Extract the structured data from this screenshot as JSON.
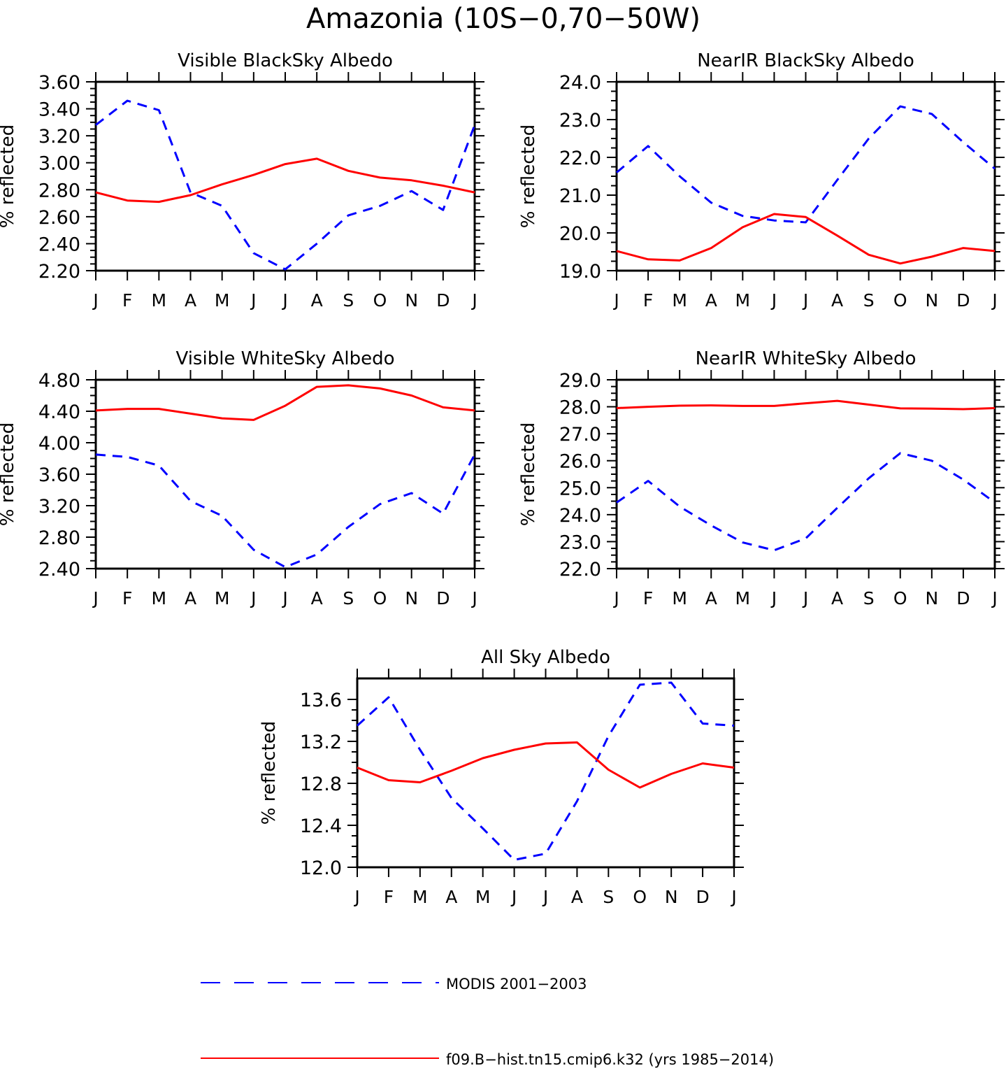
{
  "title": "Amazonia (10S−0,70−50W)",
  "legend": [
    {
      "label": "MODIS 2001−2003",
      "color": "#0000ff",
      "dash": true
    },
    {
      "label": "f09.B−hist.tn15.cmip6.k32 (yrs 1985−2014)",
      "color": "#ff0000",
      "dash": false
    }
  ],
  "chart_data": [
    {
      "type": "line",
      "title": "Visible BlackSky Albedo",
      "ylabel": "% reflected",
      "categories": [
        "J",
        "F",
        "M",
        "A",
        "M",
        "J",
        "J",
        "A",
        "S",
        "O",
        "N",
        "D",
        "J"
      ],
      "ylim": [
        2.2,
        3.6
      ],
      "yticks": [
        "2.20",
        "2.40",
        "2.60",
        "2.80",
        "3.00",
        "3.20",
        "3.40",
        "3.60"
      ],
      "series": [
        {
          "name": "MODIS 2001−2003",
          "color": "#0000ff",
          "dash": true,
          "values": [
            3.28,
            3.46,
            3.39,
            2.78,
            2.68,
            2.33,
            2.21,
            2.4,
            2.61,
            2.68,
            2.79,
            2.65,
            3.28
          ]
        },
        {
          "name": "f09.B−hist.tn15.cmip6.k32 (yrs 1985−2014)",
          "color": "#ff0000",
          "dash": false,
          "values": [
            2.78,
            2.72,
            2.71,
            2.76,
            2.84,
            2.91,
            2.99,
            3.03,
            2.94,
            2.89,
            2.87,
            2.83,
            2.78
          ]
        }
      ]
    },
    {
      "type": "line",
      "title": "NearIR BlackSky Albedo",
      "ylabel": "% reflected",
      "categories": [
        "J",
        "F",
        "M",
        "A",
        "M",
        "J",
        "J",
        "A",
        "S",
        "O",
        "N",
        "D",
        "J"
      ],
      "ylim": [
        19.0,
        24.0
      ],
      "yticks": [
        "19.0",
        "20.0",
        "21.0",
        "22.0",
        "23.0",
        "24.0"
      ],
      "series": [
        {
          "name": "MODIS 2001−2003",
          "color": "#0000ff",
          "dash": true,
          "values": [
            21.6,
            22.3,
            21.5,
            20.8,
            20.45,
            20.33,
            20.28,
            21.4,
            22.5,
            23.35,
            23.15,
            22.4,
            21.7
          ]
        },
        {
          "name": "f09.B−hist.tn15.cmip6.k32 (yrs 1985−2014)",
          "color": "#ff0000",
          "dash": false,
          "values": [
            19.52,
            19.3,
            19.27,
            19.6,
            20.15,
            20.5,
            20.42,
            19.93,
            19.42,
            19.19,
            19.37,
            19.6,
            19.52
          ]
        }
      ]
    },
    {
      "type": "line",
      "title": "Visible WhiteSky Albedo",
      "ylabel": "% reflected",
      "categories": [
        "J",
        "F",
        "M",
        "A",
        "M",
        "J",
        "J",
        "A",
        "S",
        "O",
        "N",
        "D",
        "J"
      ],
      "ylim": [
        2.4,
        4.8
      ],
      "yticks": [
        "2.40",
        "2.80",
        "3.20",
        "3.60",
        "4.00",
        "4.40",
        "4.80"
      ],
      "series": [
        {
          "name": "MODIS 2001−2003",
          "color": "#0000ff",
          "dash": true,
          "values": [
            3.85,
            3.82,
            3.71,
            3.26,
            3.07,
            2.64,
            2.42,
            2.58,
            2.93,
            3.22,
            3.36,
            3.1,
            3.85
          ]
        },
        {
          "name": "f09.B−hist.tn15.cmip6.k32 (yrs 1985−2014)",
          "color": "#ff0000",
          "dash": false,
          "values": [
            4.41,
            4.43,
            4.43,
            4.37,
            4.31,
            4.29,
            4.47,
            4.71,
            4.73,
            4.69,
            4.6,
            4.45,
            4.41
          ]
        }
      ]
    },
    {
      "type": "line",
      "title": "NearIR WhiteSky Albedo",
      "ylabel": "% reflected",
      "categories": [
        "J",
        "F",
        "M",
        "A",
        "M",
        "J",
        "J",
        "A",
        "S",
        "O",
        "N",
        "D",
        "J"
      ],
      "ylim": [
        22.0,
        29.0
      ],
      "yticks": [
        "22.0",
        "23.0",
        "24.0",
        "25.0",
        "26.0",
        "27.0",
        "28.0",
        "29.0"
      ],
      "series": [
        {
          "name": "MODIS 2001−2003",
          "color": "#0000ff",
          "dash": true,
          "values": [
            24.45,
            25.25,
            24.3,
            23.6,
            22.97,
            22.68,
            23.12,
            24.25,
            25.35,
            26.28,
            26.0,
            25.3,
            24.45
          ]
        },
        {
          "name": "f09.B−hist.tn15.cmip6.k32 (yrs 1985−2014)",
          "color": "#ff0000",
          "dash": false,
          "values": [
            27.95,
            28.0,
            28.04,
            28.05,
            28.03,
            28.03,
            28.13,
            28.22,
            28.08,
            27.94,
            27.93,
            27.91,
            27.95
          ]
        }
      ]
    },
    {
      "type": "line",
      "title": "All Sky Albedo",
      "ylabel": "% reflected",
      "categories": [
        "J",
        "F",
        "M",
        "A",
        "M",
        "J",
        "J",
        "A",
        "S",
        "O",
        "N",
        "D",
        "J"
      ],
      "ylim": [
        12.0,
        13.8
      ],
      "yticks": [
        "12.0",
        "12.4",
        "12.8",
        "13.2",
        "13.6"
      ],
      "series": [
        {
          "name": "MODIS 2001−2003",
          "color": "#0000ff",
          "dash": true,
          "values": [
            13.35,
            13.62,
            13.12,
            12.66,
            12.37,
            12.07,
            12.13,
            12.63,
            13.25,
            13.74,
            13.76,
            13.37,
            13.35
          ]
        },
        {
          "name": "f09.B−hist.tn15.cmip6.k32 (yrs 1985−2014)",
          "color": "#ff0000",
          "dash": false,
          "values": [
            12.95,
            12.83,
            12.81,
            12.92,
            13.04,
            13.12,
            13.18,
            13.19,
            12.93,
            12.76,
            12.89,
            12.99,
            12.95
          ]
        }
      ]
    }
  ]
}
